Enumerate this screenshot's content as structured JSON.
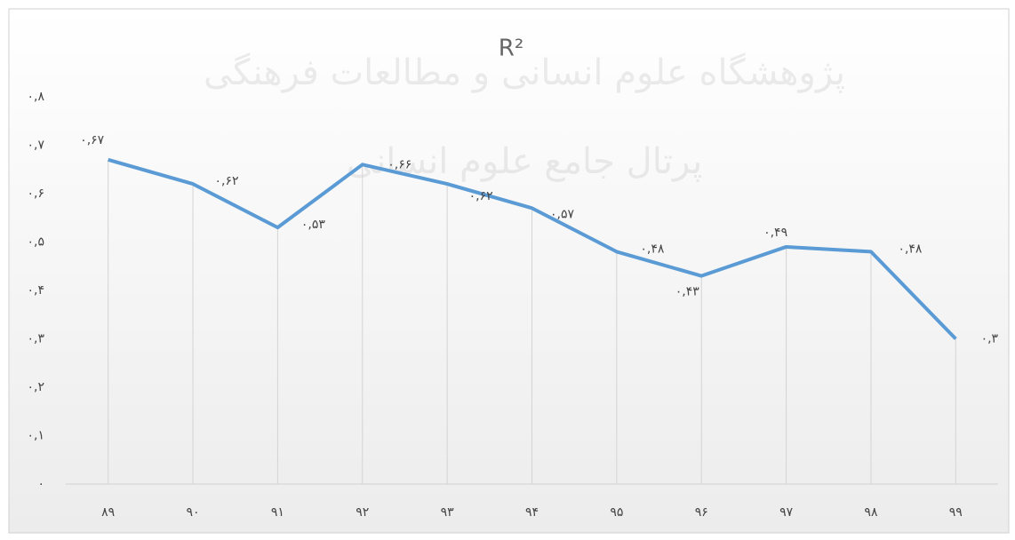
{
  "chart_data": {
    "type": "line",
    "title": "R²",
    "annotations": [
      "پژوهشگاه علوم انسانی و مطالعات فرهنگی",
      "پرتال جامع علوم انسانی"
    ],
    "categories": [
      "۸۹",
      "۹۰",
      "۹۱",
      "۹۲",
      "۹۳",
      "۹۴",
      "۹۵",
      "۹۶",
      "۹۷",
      "۹۸",
      "۹۹"
    ],
    "series": [
      {
        "color": "#5b9bd5",
        "values": [
          0.67,
          0.62,
          0.53,
          0.66,
          0.62,
          0.57,
          0.48,
          0.43,
          0.49,
          0.48,
          0.3
        ],
        "value_labels": [
          "۰,۶۷",
          "۰,۶۲",
          "۰,۵۳",
          "۰,۶۶",
          "۰,۶۲",
          "۰,۵۷",
          "۰,۴۸",
          "۰,۴۳",
          "۰,۴۹",
          "۰,۴۸",
          "۰,۳"
        ]
      }
    ],
    "ylim": [
      0,
      0.8
    ],
    "yticks": [
      {
        "value": 0,
        "label": "۰"
      },
      {
        "value": 0.1,
        "label": "۰,۱"
      },
      {
        "value": 0.2,
        "label": "۰,۲"
      },
      {
        "value": 0.3,
        "label": "۰,۳"
      },
      {
        "value": 0.4,
        "label": "۰,۴"
      },
      {
        "value": 0.5,
        "label": "۰,۵"
      },
      {
        "value": 0.6,
        "label": "۰,۶"
      },
      {
        "value": 0.7,
        "label": "۰,۷"
      },
      {
        "value": 0.8,
        "label": "۰,۸"
      }
    ],
    "grid": false
  }
}
